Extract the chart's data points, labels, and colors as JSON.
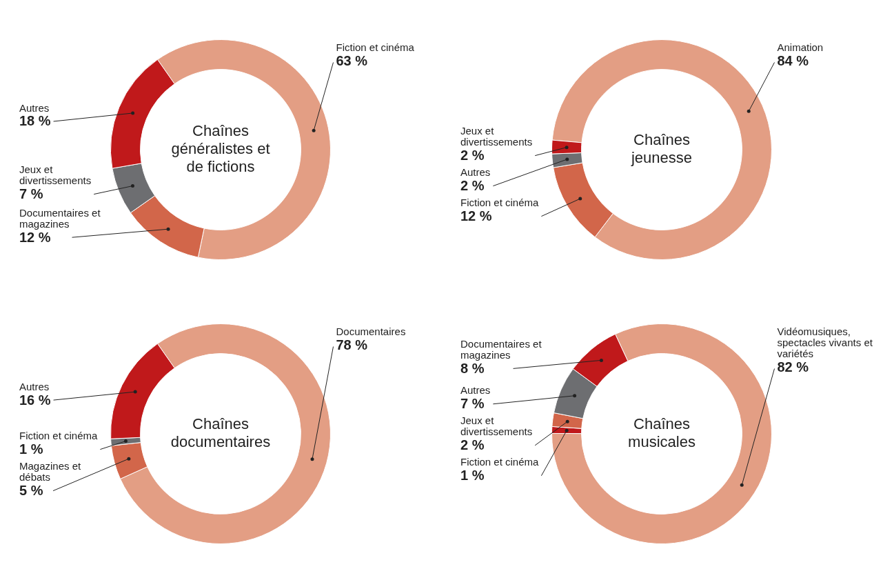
{
  "chart_data": [
    {
      "type": "donut",
      "title": "Chaînes généralistes et de fictions",
      "categories": [
        "Fiction et cinéma",
        "Documentaires et magazines",
        "Jeux et divertissements",
        "Autres"
      ],
      "values": [
        63,
        12,
        7,
        18
      ],
      "colors": [
        "#e39e84",
        "#d2664a",
        "#6d6e71",
        "#c0191b"
      ],
      "value_labels": [
        "63 %",
        "12 %",
        "7 %",
        "18 %"
      ]
    },
    {
      "type": "donut",
      "title": "Chaînes jeunesse",
      "categories": [
        "Animation",
        "Fiction et cinéma",
        "Autres",
        "Jeux et divertissements"
      ],
      "values": [
        84,
        12,
        2,
        2
      ],
      "colors": [
        "#e39e84",
        "#d2664a",
        "#6d6e71",
        "#c0191b"
      ],
      "value_labels": [
        "84 %",
        "12 %",
        "2 %",
        "2 %"
      ]
    },
    {
      "type": "donut",
      "title": "Chaînes documentaires",
      "categories": [
        "Documentaires",
        "Magazines et débats",
        "Fiction et cinéma",
        "Autres"
      ],
      "values": [
        78,
        5,
        1,
        16
      ],
      "colors": [
        "#e39e84",
        "#d2664a",
        "#6d6e71",
        "#c0191b"
      ],
      "value_labels": [
        "78 %",
        "5 %",
        "1 %",
        "16 %"
      ]
    },
    {
      "type": "donut",
      "title": "Chaînes musicales",
      "categories": [
        "Vidéomusiques, spectacles vivants et variétés",
        "Fiction et cinéma",
        "Jeux et divertissements",
        "Autres",
        "Documentaires et magazines"
      ],
      "values": [
        82,
        1,
        2,
        7,
        8
      ],
      "colors": [
        "#e39e84",
        "#c0191b",
        "#d2664a",
        "#6d6e71",
        "#c0191b"
      ],
      "value_labels": [
        "82 %",
        "1 %",
        "2 %",
        "7 %",
        "8 %"
      ]
    }
  ]
}
